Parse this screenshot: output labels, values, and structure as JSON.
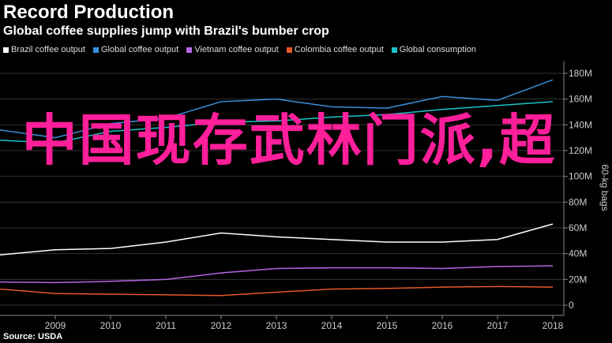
{
  "header": {
    "title": "Record Production",
    "subtitle": "Global coffee supplies jump with Brazil's bumber crop"
  },
  "overlay_text": "中国现存武林门派,超",
  "footer": {
    "source": "Source: USDA"
  },
  "colors": {
    "background": "#000000",
    "gridline": "#333333",
    "axis_text": "#cccccc",
    "overlay": "#ff1f9a"
  },
  "chart_data": {
    "type": "line",
    "title": "Record Production",
    "subtitle": "Global coffee supplies jump with Brazil's bumber crop",
    "xlabel": "",
    "ylabel": "60-kg bags",
    "x": [
      2008,
      2009,
      2010,
      2011,
      2012,
      2013,
      2014,
      2015,
      2016,
      2017,
      2018
    ],
    "x_ticks": [
      "2009",
      "2010",
      "2011",
      "2012",
      "2013",
      "2014",
      "2015",
      "2016",
      "2017",
      "2018"
    ],
    "ylim": [
      0,
      180
    ],
    "y_ticks": [
      0,
      20,
      40,
      60,
      80,
      100,
      120,
      140,
      160,
      180
    ],
    "y_tick_labels": [
      "0",
      "20M",
      "40M",
      "60M",
      "80M",
      "100M",
      "120M",
      "140M",
      "160M",
      "180M"
    ],
    "y_axis_side": "right",
    "grid": true,
    "legend_position": "top-left",
    "series": [
      {
        "name": "Brazil coffee output",
        "color": "#ffffff",
        "values": [
          39,
          43,
          44,
          49,
          56,
          53,
          51,
          49,
          49,
          51,
          63
        ]
      },
      {
        "name": "Global coffee output",
        "color": "#3a8fdc",
        "values": [
          136,
          130,
          141,
          145,
          158,
          160,
          154,
          153,
          162,
          159,
          175
        ]
      },
      {
        "name": "Vietnam coffee output",
        "color": "#b566e6",
        "values": [
          18,
          17.5,
          18.5,
          20,
          25,
          28.5,
          29,
          29,
          28.5,
          30,
          30.5
        ]
      },
      {
        "name": "Colombia coffee output",
        "color": "#e8572a",
        "values": [
          12.5,
          9,
          8.5,
          8,
          7.5,
          10,
          12.5,
          13,
          14,
          14.5,
          14
        ]
      },
      {
        "name": "Global consumption",
        "color": "#19c3c6",
        "values": [
          128,
          126,
          135,
          138,
          142,
          143,
          146,
          148,
          152,
          155,
          158
        ]
      }
    ]
  }
}
